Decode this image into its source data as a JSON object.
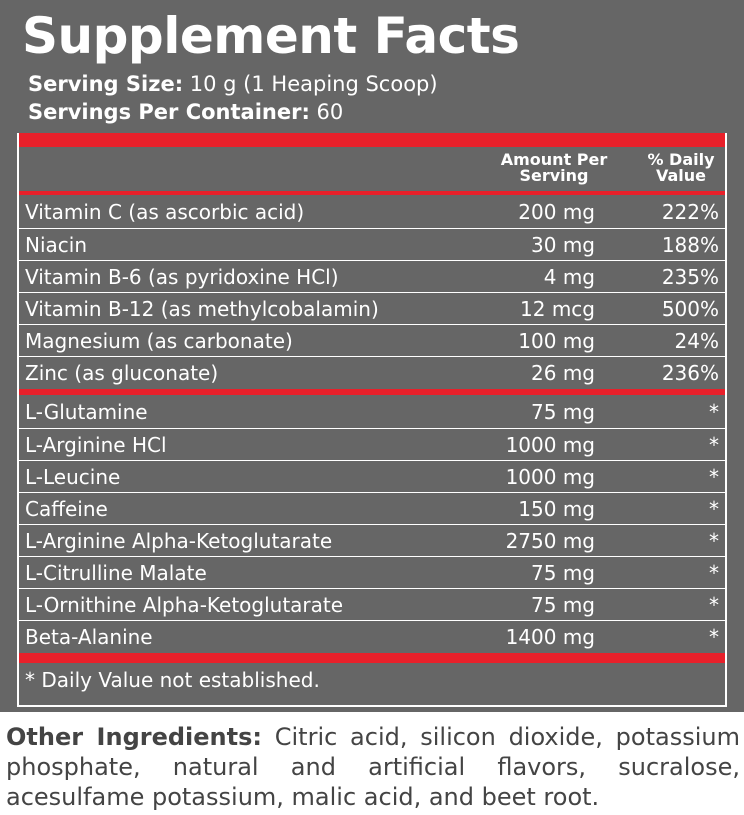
{
  "title": "Supplement Facts",
  "serving_size": {
    "label": "Serving Size:",
    "value": "10 g (1 Heaping Scoop)"
  },
  "servings_per_container": {
    "label": "Servings Per Container:",
    "value": "60"
  },
  "table": {
    "header": [
      "Amount Per Serving",
      "% Daily Value"
    ],
    "groups": [
      [
        [
          "Vitamin C (as ascorbic acid)",
          "200 mg",
          "222%"
        ],
        [
          "Niacin",
          "30 mg",
          "188%"
        ],
        [
          "Vitamin B-6 (as pyridoxine HCl)",
          "4 mg",
          "235%"
        ],
        [
          "Vitamin B-12 (as methylcobalamin)",
          "12 mcg",
          "500%"
        ],
        [
          "Magnesium (as carbonate)",
          "100 mg",
          "24%"
        ],
        [
          "Zinc (as gluconate)",
          "26 mg",
          "236%"
        ]
      ],
      [
        [
          "L-Glutamine",
          "75 mg",
          "*"
        ],
        [
          "L-Arginine HCl",
          "1000 mg",
          "*"
        ],
        [
          "L-Leucine",
          "1000 mg",
          "*"
        ],
        [
          "Caffeine",
          "150 mg",
          "*"
        ],
        [
          "L-Arginine Alpha-Ketoglutarate",
          "2750 mg",
          "*"
        ],
        [
          "L-Citrulline Malate",
          "75 mg",
          "*"
        ],
        [
          "L-Ornithine Alpha-Ketoglutarate",
          "75 mg",
          "*"
        ],
        [
          "Beta-Alanine",
          "1400 mg",
          "*"
        ]
      ]
    ]
  },
  "footnote": "* Daily Value not established.",
  "other_ingredients": {
    "label": "Other Ingredients:",
    "text": "Citric acid, silicon dioxide, potassium phosphate, natural and artificial flavors, sucralose, acesulfame potassium, malic acid, and beet root."
  }
}
